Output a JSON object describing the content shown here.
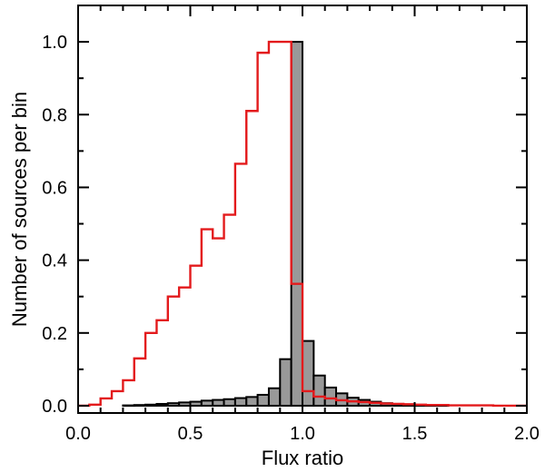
{
  "chart_data": {
    "type": "bar",
    "xlabel": "Flux ratio",
    "ylabel": "Number of sources per bin",
    "xlim": [
      0.0,
      2.0
    ],
    "ylim": [
      -0.02,
      1.1
    ],
    "bin_width": 0.05,
    "x_ticks": [
      {
        "value": 0.0,
        "label": "0.0"
      },
      {
        "value": 0.5,
        "label": "0.5"
      },
      {
        "value": 1.0,
        "label": "1.0"
      },
      {
        "value": 1.5,
        "label": "1.5"
      },
      {
        "value": 2.0,
        "label": "2.0"
      }
    ],
    "y_ticks": [
      {
        "value": 0.0,
        "label": "0.0"
      },
      {
        "value": 0.2,
        "label": "0.2"
      },
      {
        "value": 0.4,
        "label": "0.4"
      },
      {
        "value": 0.6,
        "label": "0.6"
      },
      {
        "value": 0.8,
        "label": "0.8"
      },
      {
        "value": 1.0,
        "label": "1.0"
      }
    ],
    "x_minor_step": 0.1,
    "y_minor_step": 0.1,
    "series": [
      {
        "style": "filled-histogram",
        "fill": "#999999",
        "stroke": "#000000",
        "bin_edges": [
          0.0,
          0.05,
          0.1,
          0.15,
          0.2,
          0.25,
          0.3,
          0.35,
          0.4,
          0.45,
          0.5,
          0.55,
          0.6,
          0.65,
          0.7,
          0.75,
          0.8,
          0.85,
          0.9,
          0.95,
          1.0,
          1.05,
          1.1,
          1.15,
          1.2,
          1.25,
          1.3,
          1.35,
          1.4,
          1.45,
          1.5,
          1.55,
          1.6,
          1.65,
          1.7,
          1.75,
          1.8,
          1.85,
          1.9,
          1.95,
          2.0
        ],
        "values": [
          0.0,
          0.0,
          0.0,
          0.0,
          0.001,
          0.002,
          0.003,
          0.005,
          0.007,
          0.009,
          0.011,
          0.014,
          0.016,
          0.018,
          0.021,
          0.024,
          0.03,
          0.048,
          0.128,
          1.0,
          0.178,
          0.083,
          0.05,
          0.034,
          0.022,
          0.016,
          0.011,
          0.007,
          0.005,
          0.003,
          0.002,
          0.001,
          0.001,
          0.0,
          0.0,
          0.0,
          0.0,
          0.0,
          0.0,
          0.0
        ]
      },
      {
        "style": "step-line",
        "stroke": "#e31a1c",
        "bin_edges": [
          0.0,
          0.05,
          0.1,
          0.15,
          0.2,
          0.25,
          0.3,
          0.35,
          0.4,
          0.45,
          0.5,
          0.55,
          0.6,
          0.65,
          0.7,
          0.75,
          0.8,
          0.85,
          0.9,
          0.95,
          1.0,
          1.05,
          1.1,
          1.15,
          1.2,
          1.25,
          1.3,
          1.35,
          1.4,
          1.45,
          1.5,
          1.55,
          1.6,
          1.65,
          1.7,
          1.75,
          1.8,
          1.85,
          1.9,
          1.95,
          2.0
        ],
        "values": [
          0.0,
          0.003,
          0.02,
          0.04,
          0.07,
          0.13,
          0.2,
          0.235,
          0.3,
          0.325,
          0.385,
          0.485,
          0.46,
          0.525,
          0.665,
          0.81,
          0.97,
          1.0,
          1.0,
          0.335,
          0.04,
          0.025,
          0.02,
          0.015,
          0.012,
          0.01,
          0.008,
          0.006,
          0.005,
          0.004,
          0.003,
          0.002,
          0.002,
          0.001,
          0.001,
          0.001,
          0.001,
          0.0,
          0.0,
          0.0
        ]
      }
    ],
    "grid": false,
    "legend": "none"
  }
}
